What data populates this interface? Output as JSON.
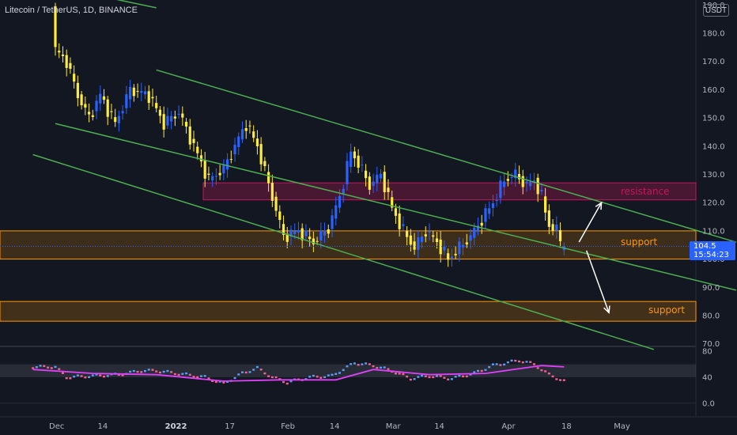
{
  "header": {
    "title": "Litecoin / TetherUS, 1D, BINANCE",
    "currency": "USDT"
  },
  "last_price": {
    "value": "104.5",
    "countdown": "15:54:23"
  },
  "annotations": {
    "resistance": "resistance",
    "support_upper": "support",
    "support_lower": "support"
  },
  "colors": {
    "background": "#131722",
    "up": "#2962ff",
    "down": "#ffeb3b",
    "channel": "#4caf50",
    "resistance_zone": "#c2185b",
    "support_zone": "#ff9800",
    "oscillator_line": "#e040fb",
    "text": "#d1d4dc"
  },
  "chart_data": [
    {
      "type": "candlestick",
      "y_ticks": [
        "190.0",
        "180.0",
        "170.0",
        "160.0",
        "150.0",
        "140.0",
        "130.0",
        "120.0",
        "110.0",
        "100.0",
        "90.0",
        "80.0",
        "70.0"
      ],
      "x_ticks": [
        "Dec",
        "14",
        "2022",
        "17",
        "Feb",
        "14",
        "Mar",
        "14",
        "Apr",
        "18",
        "May"
      ],
      "ylim": [
        68,
        191
      ],
      "x_range_days": [
        -6,
        138
      ],
      "x_unit": "days since Dec 1",
      "candles_sampled": [
        {
          "d": 0,
          "o": 190,
          "c": 174
        },
        {
          "d": 3,
          "o": 165,
          "c": 170
        },
        {
          "d": 6,
          "o": 168,
          "c": 158
        },
        {
          "d": 9,
          "o": 160,
          "c": 150
        },
        {
          "d": 12,
          "o": 152,
          "c": 158
        },
        {
          "d": 16,
          "o": 158,
          "c": 148
        },
        {
          "d": 20,
          "o": 150,
          "c": 160
        },
        {
          "d": 25,
          "o": 166,
          "c": 158
        },
        {
          "d": 29,
          "o": 160,
          "c": 148
        },
        {
          "d": 33,
          "o": 148,
          "c": 152
        },
        {
          "d": 37,
          "o": 150,
          "c": 140
        },
        {
          "d": 41,
          "o": 138,
          "c": 128
        },
        {
          "d": 45,
          "o": 128,
          "c": 132
        },
        {
          "d": 48,
          "o": 130,
          "c": 140
        },
        {
          "d": 51,
          "o": 140,
          "c": 148
        },
        {
          "d": 54,
          "o": 150,
          "c": 140
        },
        {
          "d": 58,
          "o": 140,
          "c": 122
        },
        {
          "d": 61,
          "o": 120,
          "c": 108
        },
        {
          "d": 65,
          "o": 108,
          "c": 110
        },
        {
          "d": 69,
          "o": 108,
          "c": 106
        },
        {
          "d": 73,
          "o": 107,
          "c": 111
        },
        {
          "d": 76,
          "o": 112,
          "c": 122
        },
        {
          "d": 79,
          "o": 122,
          "c": 138
        },
        {
          "d": 81,
          "o": 140,
          "c": 134
        },
        {
          "d": 84,
          "o": 132,
          "c": 126
        },
        {
          "d": 87,
          "o": 126,
          "c": 130
        },
        {
          "d": 90,
          "o": 130,
          "c": 118
        },
        {
          "d": 93,
          "o": 118,
          "c": 110
        },
        {
          "d": 96,
          "o": 110,
          "c": 104
        },
        {
          "d": 99,
          "o": 104,
          "c": 110
        },
        {
          "d": 102,
          "o": 110,
          "c": 106
        },
        {
          "d": 105,
          "o": 106,
          "c": 100
        },
        {
          "d": 108,
          "o": 100,
          "c": 104
        },
        {
          "d": 111,
          "o": 102,
          "c": 108
        },
        {
          "d": 114,
          "o": 108,
          "c": 114
        },
        {
          "d": 117,
          "o": 116,
          "c": 120
        },
        {
          "d": 120,
          "o": 122,
          "c": 128
        },
        {
          "d": 123,
          "o": 128,
          "c": 130
        },
        {
          "d": 126,
          "o": 130,
          "c": 126
        },
        {
          "d": 128,
          "o": 126,
          "c": 128
        },
        {
          "d": 130,
          "o": 128,
          "c": 122
        },
        {
          "d": 132,
          "o": 120,
          "c": 112
        },
        {
          "d": 134,
          "o": 112,
          "c": 110
        },
        {
          "d": 136,
          "o": 110,
          "c": 104
        }
      ],
      "channel_lines": [
        {
          "name": "upper",
          "from": {
            "d": 27,
            "p": 167
          },
          "to": {
            "d": 182,
            "p": 106
          }
        },
        {
          "name": "middle",
          "from": {
            "d": 0,
            "p": 148
          },
          "to": {
            "d": 182,
            "p": 89
          }
        },
        {
          "name": "lower",
          "from": {
            "d": -6,
            "p": 137
          },
          "to": {
            "d": 160,
            "p": 68
          }
        },
        {
          "name": "top",
          "from": {
            "d": 9,
            "p": 194
          },
          "to": {
            "d": 27,
            "p": 189
          }
        }
      ],
      "zones": [
        {
          "label": "resistance",
          "low": 121,
          "high": 127
        },
        {
          "label": "support",
          "low": 100,
          "high": 110
        },
        {
          "label": "support",
          "low": 78,
          "high": 85
        }
      ],
      "projections": [
        {
          "from": {
            "d": 140,
            "p": 106
          },
          "to": {
            "d": 146,
            "p": 120
          }
        },
        {
          "from": {
            "d": 142,
            "p": 103
          },
          "to": {
            "d": 148,
            "p": 81
          }
        }
      ]
    },
    {
      "type": "oscillator",
      "y_ticks": [
        "80",
        "40",
        "0.0"
      ],
      "ylim": [
        -2,
        82
      ],
      "band": [
        40,
        60
      ],
      "values_sampled": [
        {
          "d": 0,
          "v": 56
        },
        {
          "d": 3,
          "v": 40
        },
        {
          "d": 10,
          "v": 42
        },
        {
          "d": 17,
          "v": 44
        },
        {
          "d": 23,
          "v": 50
        },
        {
          "d": 27,
          "v": 50
        },
        {
          "d": 35,
          "v": 44
        },
        {
          "d": 40,
          "v": 40
        },
        {
          "d": 45,
          "v": 30
        },
        {
          "d": 50,
          "v": 46
        },
        {
          "d": 54,
          "v": 54
        },
        {
          "d": 58,
          "v": 40
        },
        {
          "d": 62,
          "v": 32
        },
        {
          "d": 68,
          "v": 40
        },
        {
          "d": 74,
          "v": 42
        },
        {
          "d": 80,
          "v": 62
        },
        {
          "d": 85,
          "v": 58
        },
        {
          "d": 90,
          "v": 50
        },
        {
          "d": 95,
          "v": 38
        },
        {
          "d": 100,
          "v": 42
        },
        {
          "d": 106,
          "v": 38
        },
        {
          "d": 112,
          "v": 46
        },
        {
          "d": 117,
          "v": 58
        },
        {
          "d": 124,
          "v": 66
        },
        {
          "d": 128,
          "v": 60
        },
        {
          "d": 132,
          "v": 44
        },
        {
          "d": 136,
          "v": 34
        }
      ],
      "ma_sampled": [
        {
          "d": -6,
          "v": 52
        },
        {
          "d": 10,
          "v": 46
        },
        {
          "d": 27,
          "v": 44
        },
        {
          "d": 45,
          "v": 34
        },
        {
          "d": 60,
          "v": 36
        },
        {
          "d": 75,
          "v": 36
        },
        {
          "d": 85,
          "v": 52
        },
        {
          "d": 100,
          "v": 44
        },
        {
          "d": 115,
          "v": 46
        },
        {
          "d": 125,
          "v": 54
        },
        {
          "d": 130,
          "v": 58
        },
        {
          "d": 136,
          "v": 56
        }
      ]
    }
  ]
}
